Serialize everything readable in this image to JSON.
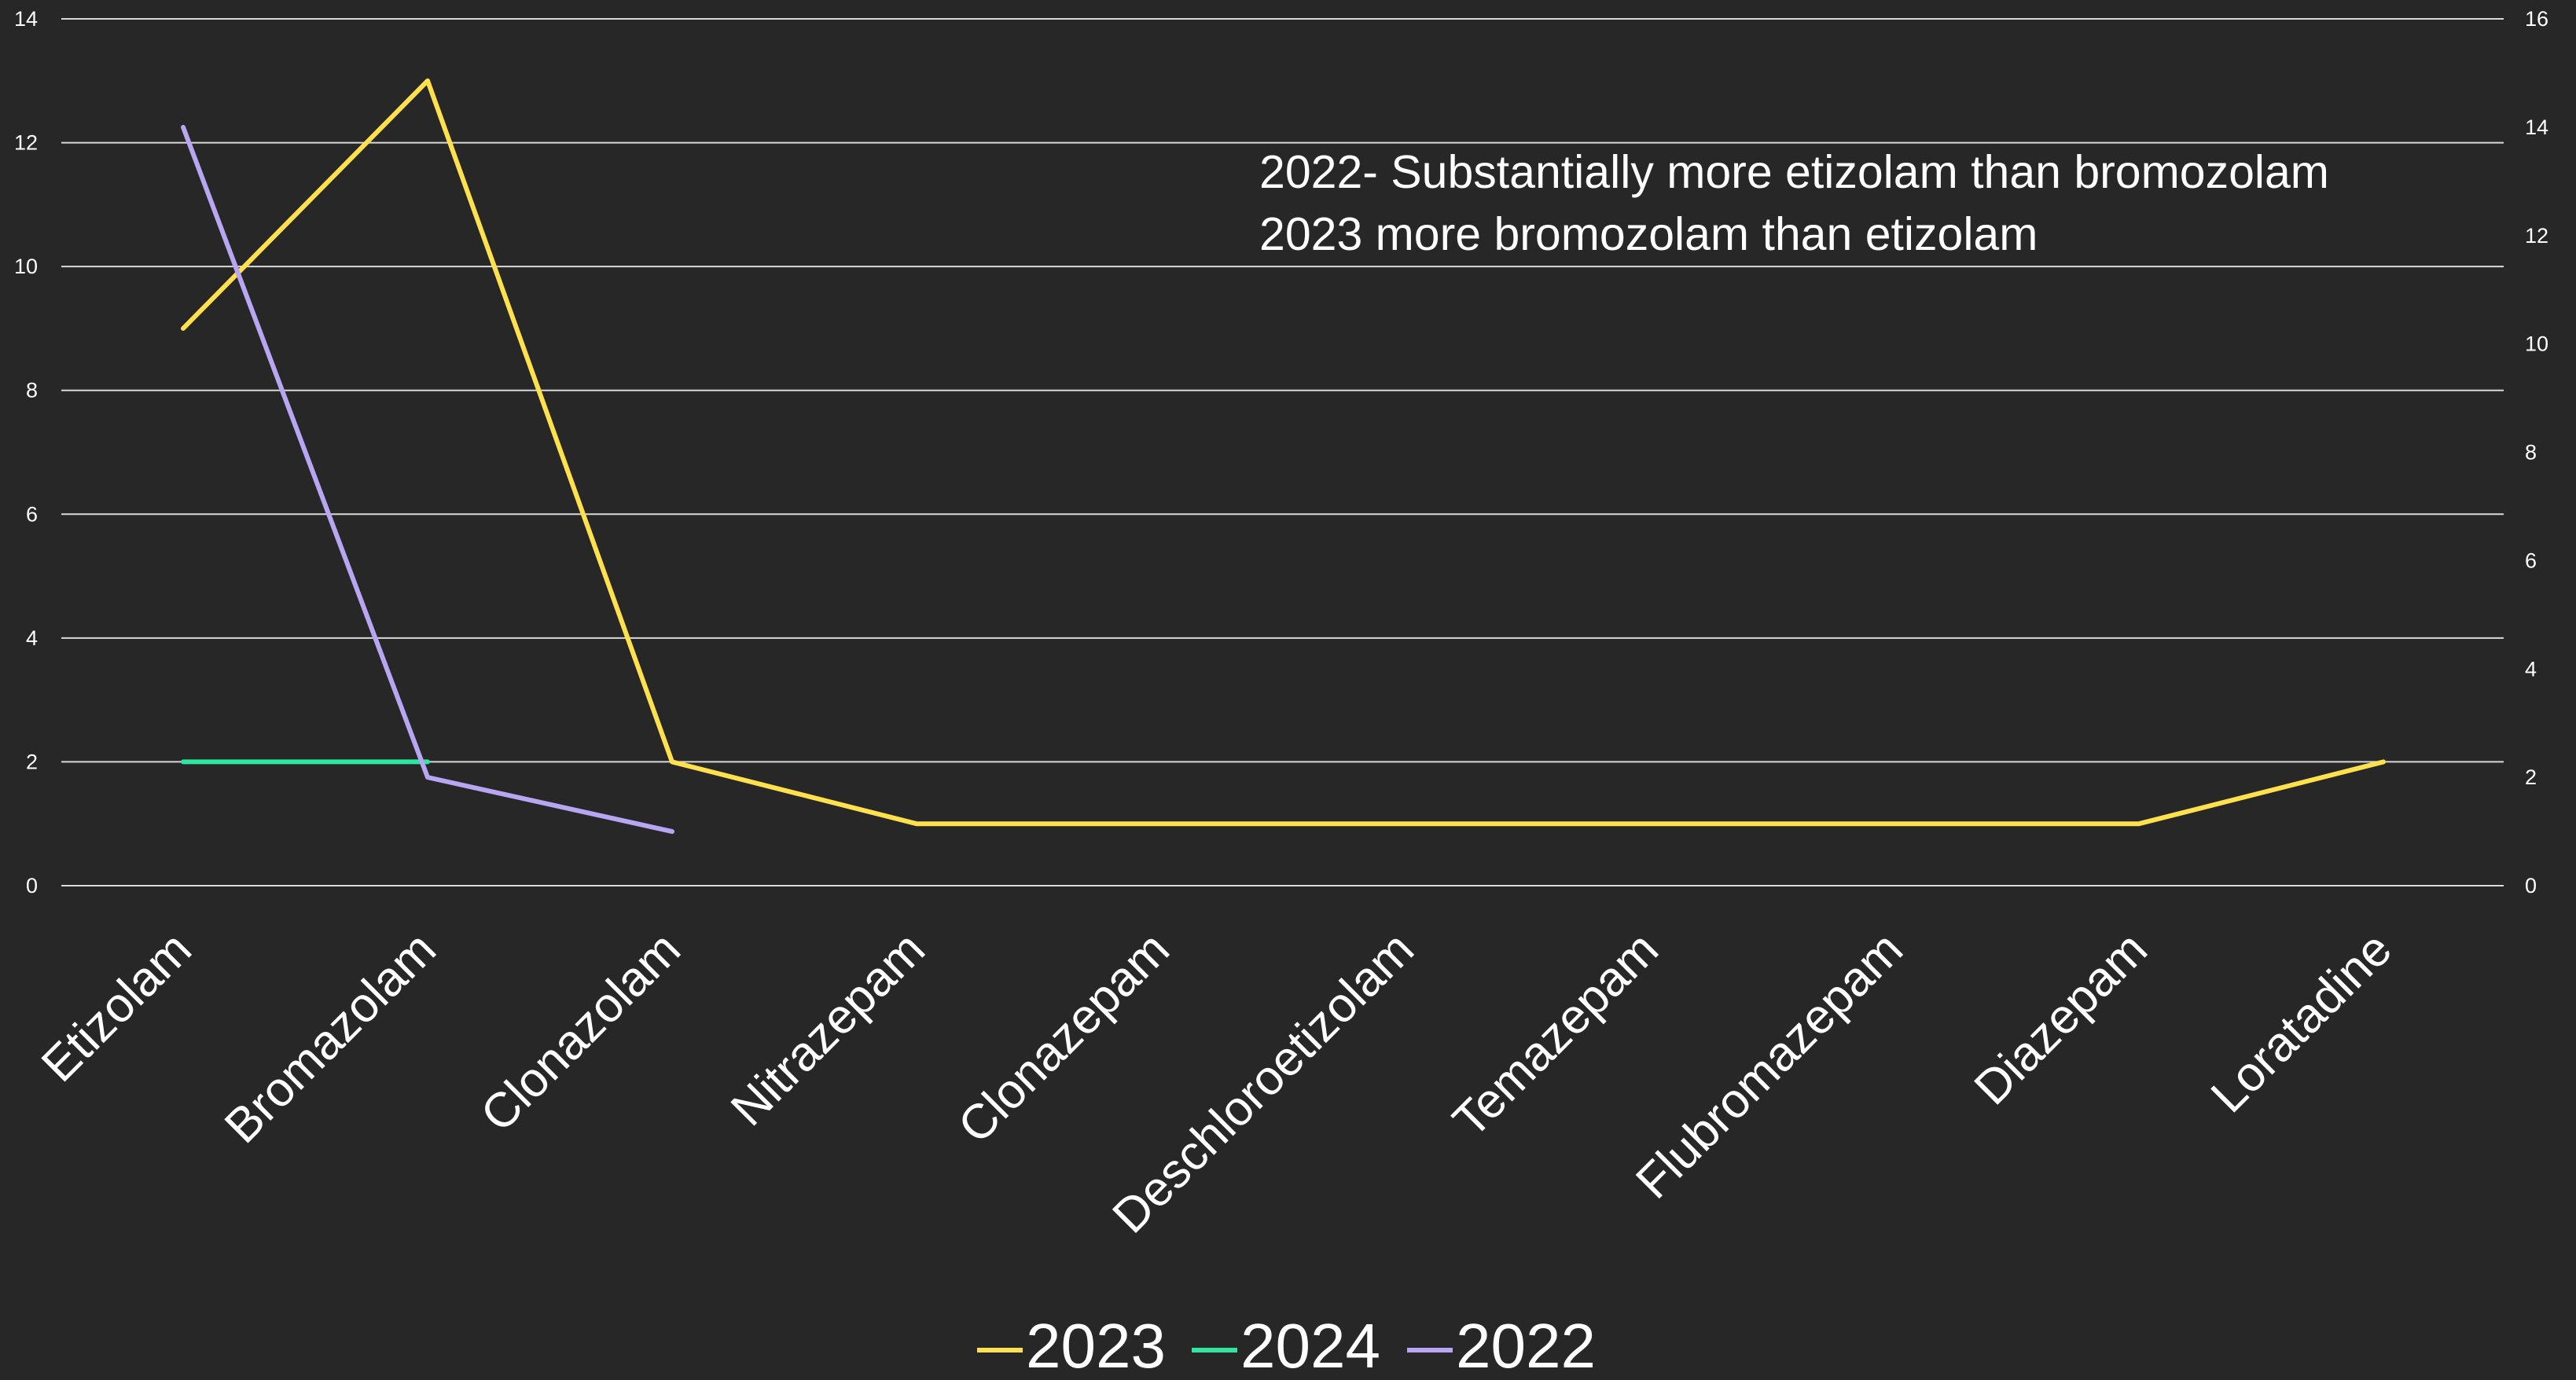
{
  "colors": {
    "background": "#272727",
    "grid": "#d9d9d9",
    "text": "#ffffff",
    "series_2023": "#ffe14d",
    "series_2024": "#2ee6a0",
    "series_2022": "#b8a6f2"
  },
  "chart_data": {
    "type": "line",
    "title": "",
    "annotation": [
      "2022- Substantially more etizolam than bromozolam",
      "2023 more bromozolam than etizolam"
    ],
    "categories": [
      "Etizolam",
      "Bromazolam",
      "Clonazolam",
      "Nitrazepam",
      "Clonazepam",
      "Deschloroetizolam",
      "Temazepam",
      "Flubromazepam",
      "Diazepam",
      "Loratadine"
    ],
    "primary_axis": {
      "side": "left",
      "ylim": [
        0,
        14
      ],
      "ticks": [
        0,
        2,
        4,
        6,
        8,
        10,
        12,
        14
      ]
    },
    "secondary_axis": {
      "side": "right",
      "ylim": [
        0,
        16
      ],
      "ticks": [
        0,
        2,
        4,
        6,
        8,
        10,
        12,
        14,
        16
      ]
    },
    "grid": true,
    "legend_position": "bottom",
    "series": [
      {
        "name": "2023",
        "axis": "primary",
        "color": "#ffe14d",
        "values": [
          9,
          13,
          2,
          1,
          1,
          1,
          1,
          1,
          1,
          2
        ]
      },
      {
        "name": "2024",
        "axis": "primary",
        "color": "#2ee6a0",
        "values": [
          2,
          2,
          null,
          null,
          null,
          null,
          null,
          null,
          null,
          null
        ]
      },
      {
        "name": "2022",
        "axis": "secondary",
        "color": "#b8a6f2",
        "values": [
          14,
          2,
          1,
          null,
          null,
          null,
          null,
          null,
          null,
          null
        ]
      }
    ]
  }
}
